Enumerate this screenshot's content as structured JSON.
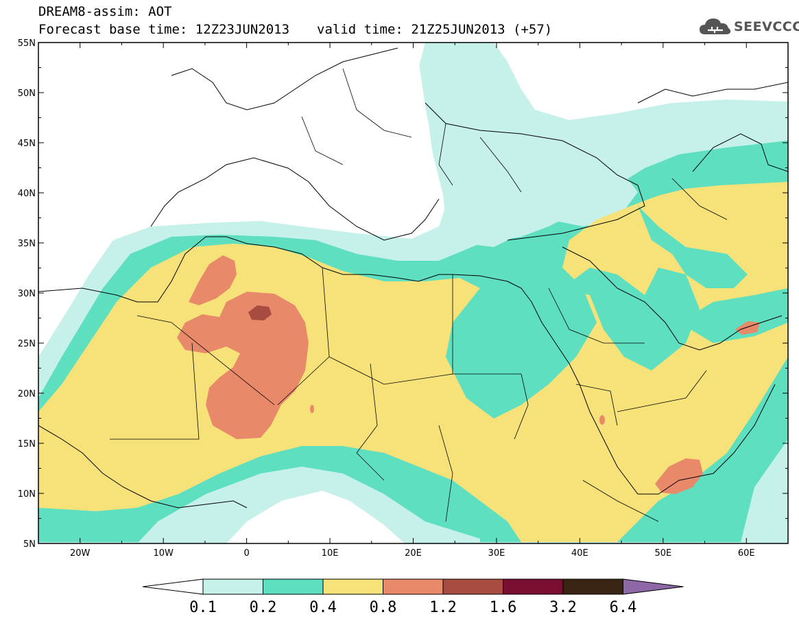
{
  "title": {
    "line1": "DREAM8-assim: AOT",
    "base_time": "Forecast base time: 12Z23JUN2013",
    "valid_time": "valid time: 21Z25JUN2013 (+57)"
  },
  "logo": {
    "text": "SEEVCCC",
    "icon": "cloud-icon",
    "color": "#555555"
  },
  "map": {
    "lon_range": [
      -25,
      65
    ],
    "lat_range": [
      5,
      55
    ],
    "lat_ticks": [
      "55N",
      "50N",
      "45N",
      "40N",
      "35N",
      "30N",
      "25N",
      "20N",
      "15N",
      "10N",
      "5N"
    ],
    "lon_ticks": [
      "20W",
      "10W",
      "0",
      "10E",
      "20E",
      "30E",
      "40E",
      "50E",
      "60E"
    ]
  },
  "colorbar": {
    "labels": [
      "0.1",
      "0.2",
      "0.4",
      "0.8",
      "1.2",
      "1.6",
      "3.2",
      "6.4"
    ],
    "colors": [
      "#c6f0ea",
      "#5ddfc0",
      "#f7e27a",
      "#e8896a",
      "#a84c42",
      "#7a0e30",
      "#3a2414",
      "#8e67a6"
    ],
    "under_color": "#ffffff"
  },
  "colors": {
    "aot_0_1": "#c6f0ea",
    "aot_0_2": "#5ddfc0",
    "aot_0_4": "#f7e27a",
    "aot_0_8": "#e8896a",
    "aot_1_2": "#a84c42"
  }
}
